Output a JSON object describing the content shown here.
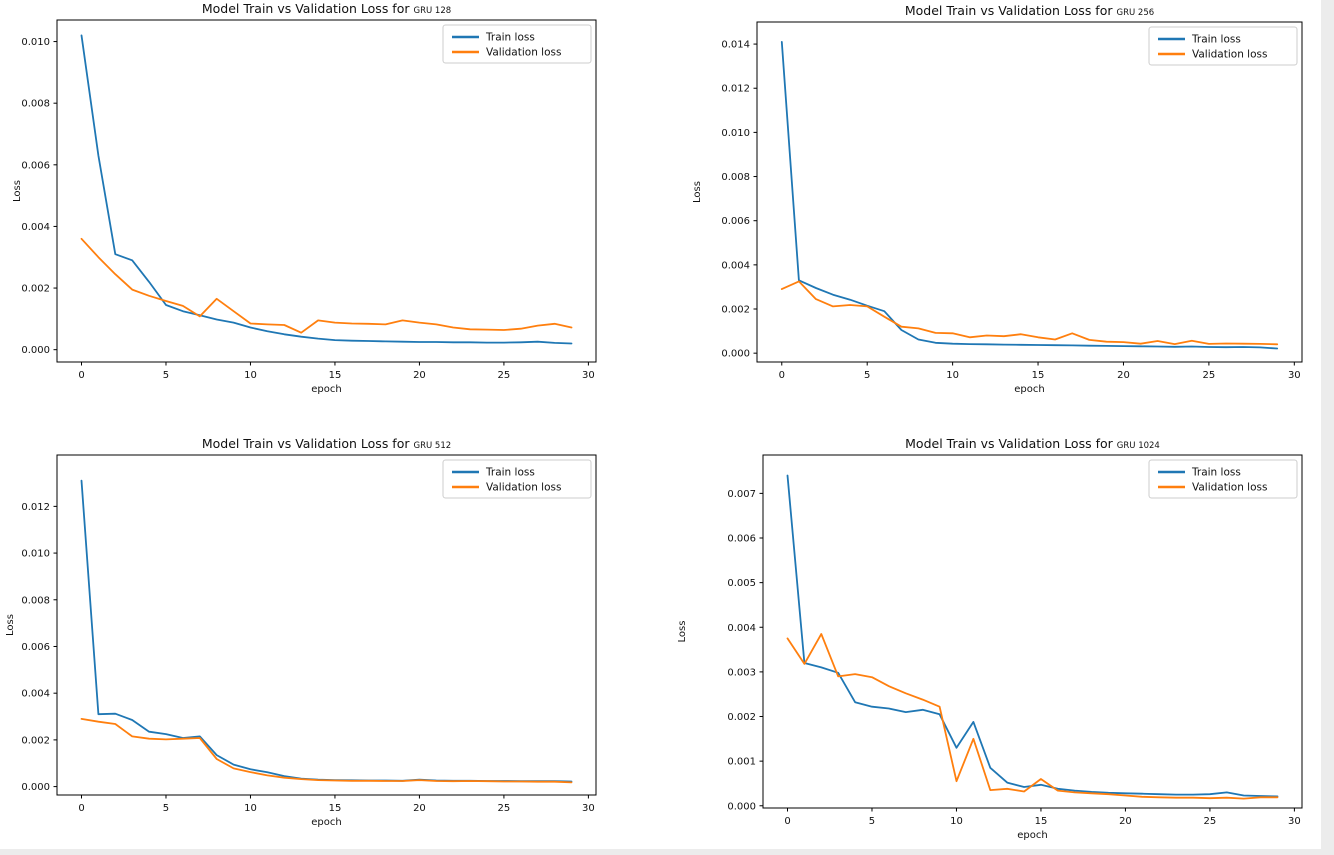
{
  "figure": {
    "title_prefix": "Model Train vs Validation Loss for",
    "legend_labels": [
      "Train loss",
      "Validation loss"
    ],
    "colors": {
      "train": "#1f77b4",
      "validation": "#ff7f0e"
    }
  },
  "chart_data": [
    {
      "type": "line",
      "title": "Model Train vs Validation Loss for",
      "model_tag": "GRU 128",
      "xlabel": "epoch",
      "ylabel": "Loss",
      "legend": [
        "Train loss",
        "Validation loss"
      ],
      "legend_position": "top-right",
      "grid": false,
      "x_ticks": [
        0,
        5,
        10,
        15,
        20,
        25,
        30
      ],
      "y_ticks": [
        0.0,
        0.002,
        0.004,
        0.006,
        0.008,
        0.01
      ],
      "xlim": [
        -1.45,
        30.45
      ],
      "ylim": [
        -0.0004,
        0.0107
      ],
      "x": [
        0,
        1,
        2,
        3,
        4,
        5,
        6,
        7,
        8,
        9,
        10,
        11,
        12,
        13,
        14,
        15,
        16,
        17,
        18,
        19,
        20,
        21,
        22,
        23,
        24,
        25,
        26,
        27,
        28,
        29
      ],
      "series": [
        {
          "name": "Train loss",
          "color": "#1f77b4",
          "values": [
            0.0102,
            0.0063,
            0.0031,
            0.0029,
            0.0022,
            0.00145,
            0.00125,
            0.00112,
            0.00098,
            0.00088,
            0.00072,
            0.0006,
            0.0005,
            0.00042,
            0.00036,
            0.00031,
            0.00029,
            0.00028,
            0.00027,
            0.00026,
            0.00025,
            0.00025,
            0.00024,
            0.00024,
            0.00023,
            0.00023,
            0.00024,
            0.00026,
            0.00022,
            0.0002
          ]
        },
        {
          "name": "Validation loss",
          "color": "#ff7f0e",
          "values": [
            0.0036,
            0.003,
            0.00245,
            0.00195,
            0.00175,
            0.00158,
            0.00142,
            0.00108,
            0.00165,
            0.00125,
            0.00085,
            0.00082,
            0.0008,
            0.00055,
            0.00095,
            0.00088,
            0.00085,
            0.00084,
            0.00082,
            0.00095,
            0.00088,
            0.00082,
            0.00072,
            0.00066,
            0.00065,
            0.00064,
            0.00068,
            0.00078,
            0.00084,
            0.00072
          ]
        }
      ]
    },
    {
      "type": "line",
      "title": "Model Train vs Validation Loss for",
      "model_tag": "GRU 256",
      "xlabel": "epoch",
      "ylabel": "Loss",
      "legend": [
        "Train loss",
        "Validation loss"
      ],
      "legend_position": "top-right",
      "grid": false,
      "x_ticks": [
        0,
        5,
        10,
        15,
        20,
        25,
        30
      ],
      "y_ticks": [
        0.0,
        0.002,
        0.004,
        0.006,
        0.008,
        0.01,
        0.012,
        0.014
      ],
      "xlim": [
        -1.45,
        30.45
      ],
      "ylim": [
        -0.0004,
        0.015
      ],
      "x": [
        0,
        1,
        2,
        3,
        4,
        5,
        6,
        7,
        8,
        9,
        10,
        11,
        12,
        13,
        14,
        15,
        16,
        17,
        18,
        19,
        20,
        21,
        22,
        23,
        24,
        25,
        26,
        27,
        28,
        29
      ],
      "series": [
        {
          "name": "Train loss",
          "color": "#1f77b4",
          "values": [
            0.0141,
            0.0033,
            0.00295,
            0.00265,
            0.00242,
            0.00215,
            0.0019,
            0.00105,
            0.00062,
            0.00047,
            0.00043,
            0.00041,
            0.0004,
            0.00039,
            0.00038,
            0.00037,
            0.00036,
            0.00035,
            0.00034,
            0.00033,
            0.00032,
            0.00031,
            0.0003,
            0.00029,
            0.0003,
            0.00028,
            0.00027,
            0.00028,
            0.00026,
            0.00021
          ]
        },
        {
          "name": "Validation loss",
          "color": "#ff7f0e",
          "values": [
            0.0029,
            0.00325,
            0.00245,
            0.00212,
            0.00218,
            0.00212,
            0.00165,
            0.0012,
            0.00112,
            0.00092,
            0.0009,
            0.00072,
            0.0008,
            0.00077,
            0.00086,
            0.00072,
            0.00062,
            0.0009,
            0.0006,
            0.00052,
            0.0005,
            0.00043,
            0.00055,
            0.00041,
            0.00056,
            0.00042,
            0.00044,
            0.00043,
            0.00042,
            0.0004
          ]
        }
      ]
    },
    {
      "type": "line",
      "title": "Model Train vs Validation Loss for",
      "model_tag": "GRU 512",
      "xlabel": "epoch",
      "ylabel": "Loss",
      "legend": [
        "Train loss",
        "Validation loss"
      ],
      "legend_position": "top-right",
      "grid": false,
      "x_ticks": [
        0,
        5,
        10,
        15,
        20,
        25,
        30
      ],
      "y_ticks": [
        0.0,
        0.002,
        0.004,
        0.006,
        0.008,
        0.01,
        0.012
      ],
      "xlim": [
        -1.45,
        30.45
      ],
      "ylim": [
        -0.00036,
        0.0142
      ],
      "x": [
        0,
        1,
        2,
        3,
        4,
        5,
        6,
        7,
        8,
        9,
        10,
        11,
        12,
        13,
        14,
        15,
        16,
        17,
        18,
        19,
        20,
        21,
        22,
        23,
        24,
        25,
        26,
        27,
        28,
        29
      ],
      "series": [
        {
          "name": "Train loss",
          "color": "#1f77b4",
          "values": [
            0.0131,
            0.0031,
            0.00312,
            0.00285,
            0.00235,
            0.00225,
            0.00208,
            0.00215,
            0.00135,
            0.00094,
            0.00074,
            0.00061,
            0.00045,
            0.00034,
            0.0003,
            0.00028,
            0.00027,
            0.00026,
            0.00026,
            0.00025,
            0.0003,
            0.00026,
            0.00025,
            0.00025,
            0.00024,
            0.00024,
            0.00023,
            0.00023,
            0.00023,
            0.00022
          ]
        },
        {
          "name": "Validation loss",
          "color": "#ff7f0e",
          "values": [
            0.0029,
            0.00278,
            0.00268,
            0.00215,
            0.00205,
            0.00202,
            0.00205,
            0.00208,
            0.00118,
            0.00078,
            0.00062,
            0.00048,
            0.00038,
            0.00032,
            0.00028,
            0.00026,
            0.00025,
            0.00025,
            0.00024,
            0.00024,
            0.00028,
            0.00024,
            0.00023,
            0.00024,
            0.00023,
            0.00022,
            0.00022,
            0.00021,
            0.00021,
            0.00018
          ]
        }
      ]
    },
    {
      "type": "line",
      "title": "Model Train vs Validation Loss for",
      "model_tag": "GRU 1024",
      "xlabel": "epoch",
      "ylabel": "Loss",
      "legend": [
        "Train loss",
        "Validation loss"
      ],
      "legend_position": "top-right",
      "grid": false,
      "x_ticks": [
        0,
        5,
        10,
        15,
        20,
        25,
        30
      ],
      "y_ticks": [
        0.0,
        0.001,
        0.002,
        0.003,
        0.004,
        0.005,
        0.006,
        0.007
      ],
      "xlim": [
        -1.45,
        30.45
      ],
      "ylim": [
        -5e-05,
        0.00786
      ],
      "x": [
        0,
        1,
        2,
        3,
        4,
        5,
        6,
        7,
        8,
        9,
        10,
        11,
        12,
        13,
        14,
        15,
        16,
        17,
        18,
        19,
        20,
        21,
        22,
        23,
        24,
        25,
        26,
        27,
        28,
        29
      ],
      "series": [
        {
          "name": "Train loss",
          "color": "#1f77b4",
          "values": [
            0.0074,
            0.0032,
            0.0031,
            0.00298,
            0.00232,
            0.00222,
            0.00218,
            0.0021,
            0.00215,
            0.00205,
            0.0013,
            0.00188,
            0.00085,
            0.00052,
            0.00042,
            0.00047,
            0.00038,
            0.00034,
            0.00031,
            0.00029,
            0.00028,
            0.00027,
            0.00026,
            0.00025,
            0.00025,
            0.00026,
            0.0003,
            0.00023,
            0.00022,
            0.00021
          ]
        },
        {
          "name": "Validation loss",
          "color": "#ff7f0e",
          "values": [
            0.00375,
            0.00318,
            0.00385,
            0.0029,
            0.00295,
            0.00288,
            0.00268,
            0.00252,
            0.00238,
            0.00222,
            0.00055,
            0.0015,
            0.00035,
            0.00038,
            0.00032,
            0.0006,
            0.00034,
            0.0003,
            0.00028,
            0.00026,
            0.00023,
            0.0002,
            0.00019,
            0.00018,
            0.00018,
            0.00017,
            0.00018,
            0.00016,
            0.00019,
            0.00019
          ]
        }
      ]
    }
  ]
}
